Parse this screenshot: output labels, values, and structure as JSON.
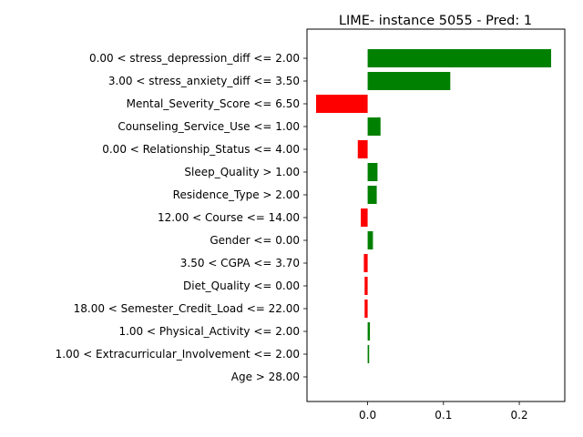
{
  "chart_data": {
    "type": "bar",
    "orientation": "horizontal",
    "title": "LIME- instance 5055 - Pred: 1",
    "xlabel": "",
    "ylabel": "",
    "xlim": [
      -0.08,
      0.26
    ],
    "xticks": [
      0.0,
      0.1,
      0.2
    ],
    "xtick_labels": [
      "0.0",
      "0.1",
      "0.2"
    ],
    "grid": false,
    "legend": "none",
    "colors": {
      "positive": "#008000",
      "negative": "#ff0000"
    },
    "categories": [
      "0.00 < stress_depression_diff <= 2.00",
      "3.00 < stress_anxiety_diff <= 3.50",
      "Mental_Severity_Score <= 6.50",
      "Counseling_Service_Use <= 1.00",
      "0.00 < Relationship_Status <= 4.00",
      "Sleep_Quality > 1.00",
      "Residence_Type > 2.00",
      "12.00 < Course <= 14.00",
      "Gender <= 0.00",
      "3.50 < CGPA <= 3.70",
      "Diet_Quality <= 0.00",
      "18.00 < Semester_Credit_Load <= 22.00",
      "1.00 < Physical_Activity <= 2.00",
      "1.00 < Extracurricular_Involvement <= 2.00",
      "Age > 28.00"
    ],
    "values": [
      0.242,
      0.109,
      -0.068,
      0.017,
      -0.013,
      0.013,
      0.012,
      -0.009,
      0.007,
      -0.005,
      -0.004,
      -0.004,
      0.003,
      0.002,
      0.0
    ]
  }
}
